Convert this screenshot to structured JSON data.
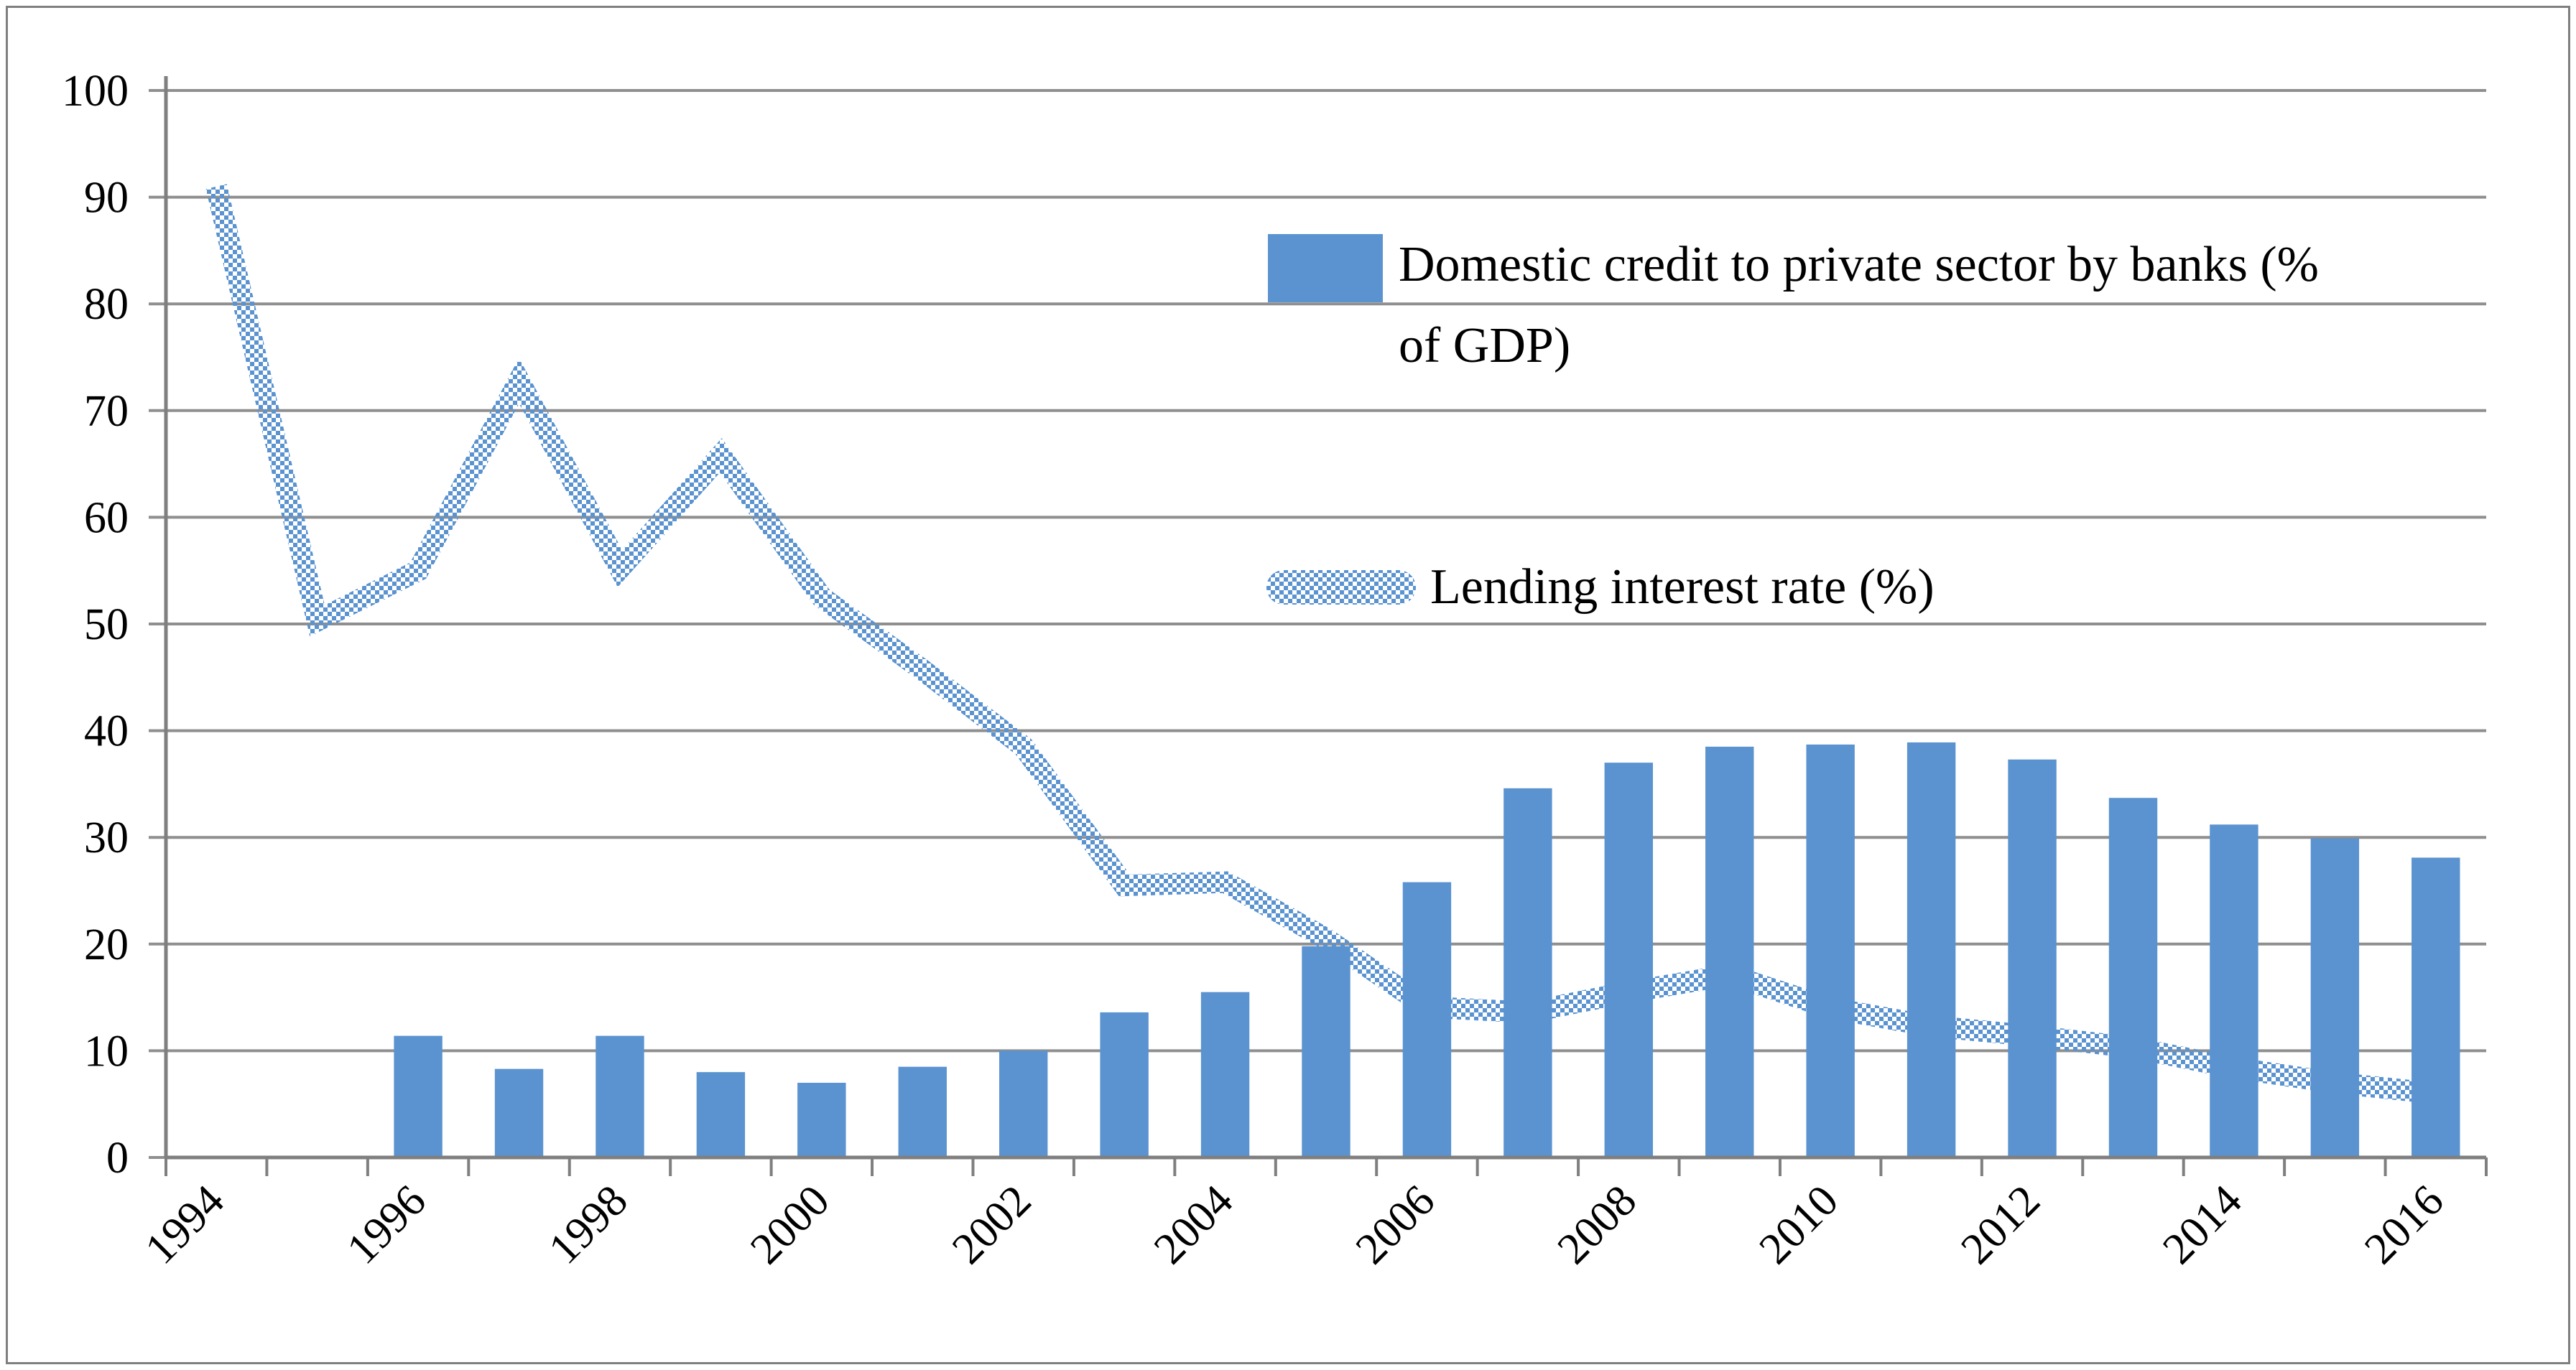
{
  "window": {
    "background": "#ffffff",
    "border_color": "#7f7f7f"
  },
  "legend": {
    "series1_lines": [
      "Domestic credit to private sector by banks (%",
      "of GDP)"
    ],
    "series1_label": "Domestic credit to private sector by banks (% of GDP)",
    "series2_label": "Lending interest rate (%)"
  },
  "chart_data": {
    "type": "combo-bar-line",
    "title": "",
    "xlabel": "",
    "ylabel": "",
    "categories": [
      1994,
      1995,
      1996,
      1997,
      1998,
      1999,
      2000,
      2001,
      2002,
      2003,
      2004,
      2005,
      2006,
      2007,
      2008,
      2009,
      2010,
      2011,
      2012,
      2013,
      2014,
      2015,
      2016
    ],
    "series": [
      {
        "name": "Domestic credit to private sector by banks (% of GDP)",
        "type": "bar",
        "color": "#5A93D0",
        "values": [
          null,
          null,
          11.4,
          8.3,
          11.4,
          8,
          7,
          8.5,
          10,
          13.6,
          15.5,
          19.8,
          25.8,
          34.6,
          37,
          38.5,
          38.7,
          38.9,
          37.3,
          33.7,
          31.2,
          29.9,
          28.1
        ]
      },
      {
        "name": "Lending interest rate (%)",
        "type": "line",
        "line_style": "thick-checker-pattern",
        "color": "#5A93D0",
        "values": [
          91,
          50.3,
          55,
          72.8,
          55.2,
          65.8,
          52.5,
          45.7,
          38.5,
          25.5,
          25.8,
          20.5,
          14.1,
          13.6,
          15.5,
          17.1,
          14,
          12.3,
          11.4,
          10.3,
          8.4,
          7,
          6
        ]
      }
    ],
    "ylim": [
      0,
      100
    ],
    "y_ticks": [
      0,
      10,
      20,
      30,
      40,
      50,
      60,
      70,
      80,
      90,
      100
    ],
    "y_tick_labels": [
      "0",
      "10",
      "20",
      "30",
      "40",
      "50",
      "60",
      "70",
      "80",
      "90",
      "100"
    ],
    "x_tick_labels": [
      "1994",
      "1996",
      "1998",
      "2000",
      "2002",
      "2004",
      "2006",
      "2008",
      "2010",
      "2012",
      "2014",
      "2016"
    ],
    "x_label_interval": 2,
    "x_label_rotation_deg": -45,
    "grid": true,
    "gridline_color": "#8F8F8F",
    "axis_color": "#7F7F7F",
    "text_color": "#000000",
    "legend_position": "inside-upper-right"
  }
}
